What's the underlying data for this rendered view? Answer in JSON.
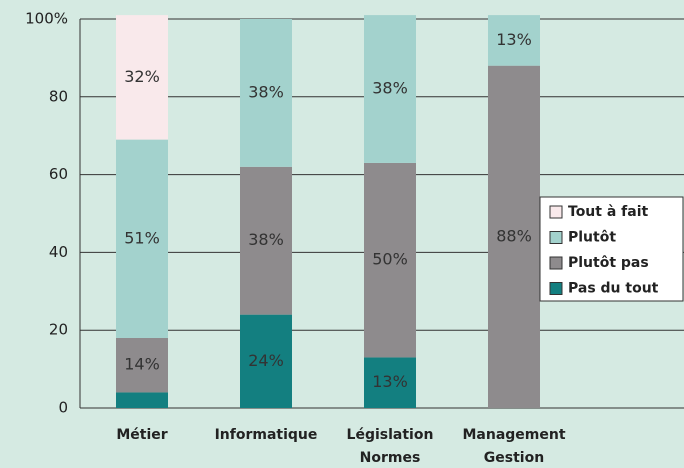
{
  "chart_data": {
    "type": "stacked_bar",
    "categories": [
      [
        "Métier"
      ],
      [
        "Informatique"
      ],
      [
        "Législation",
        "Normes"
      ],
      [
        "Management",
        "Gestion"
      ]
    ],
    "series": [
      {
        "name": "Pas du tout",
        "color": "#137f80",
        "values": [
          4,
          24,
          13,
          null
        ],
        "value_labels": [
          null,
          "24%",
          "13%",
          null
        ]
      },
      {
        "name": "Plutôt pas",
        "color": "#8e8b8d",
        "values": [
          14,
          38,
          50,
          88
        ],
        "value_labels": [
          "14%",
          "38%",
          "50%",
          "88%"
        ]
      },
      {
        "name": "Plutôt",
        "color": "#a3d2cd",
        "values": [
          51,
          38,
          38,
          13
        ],
        "value_labels": [
          "51%",
          "38%",
          "38%",
          "13%"
        ]
      },
      {
        "name": "Tout à fait",
        "color": "#f9e9eb",
        "values": [
          32,
          null,
          null,
          null
        ],
        "value_labels": [
          "32%",
          null,
          null,
          null
        ]
      }
    ],
    "ylim": [
      0,
      100
    ],
    "yticks": [
      0,
      20,
      40,
      60,
      80,
      {
        "value": 100,
        "label": "100%"
      }
    ],
    "grid": true,
    "legend": "right"
  }
}
